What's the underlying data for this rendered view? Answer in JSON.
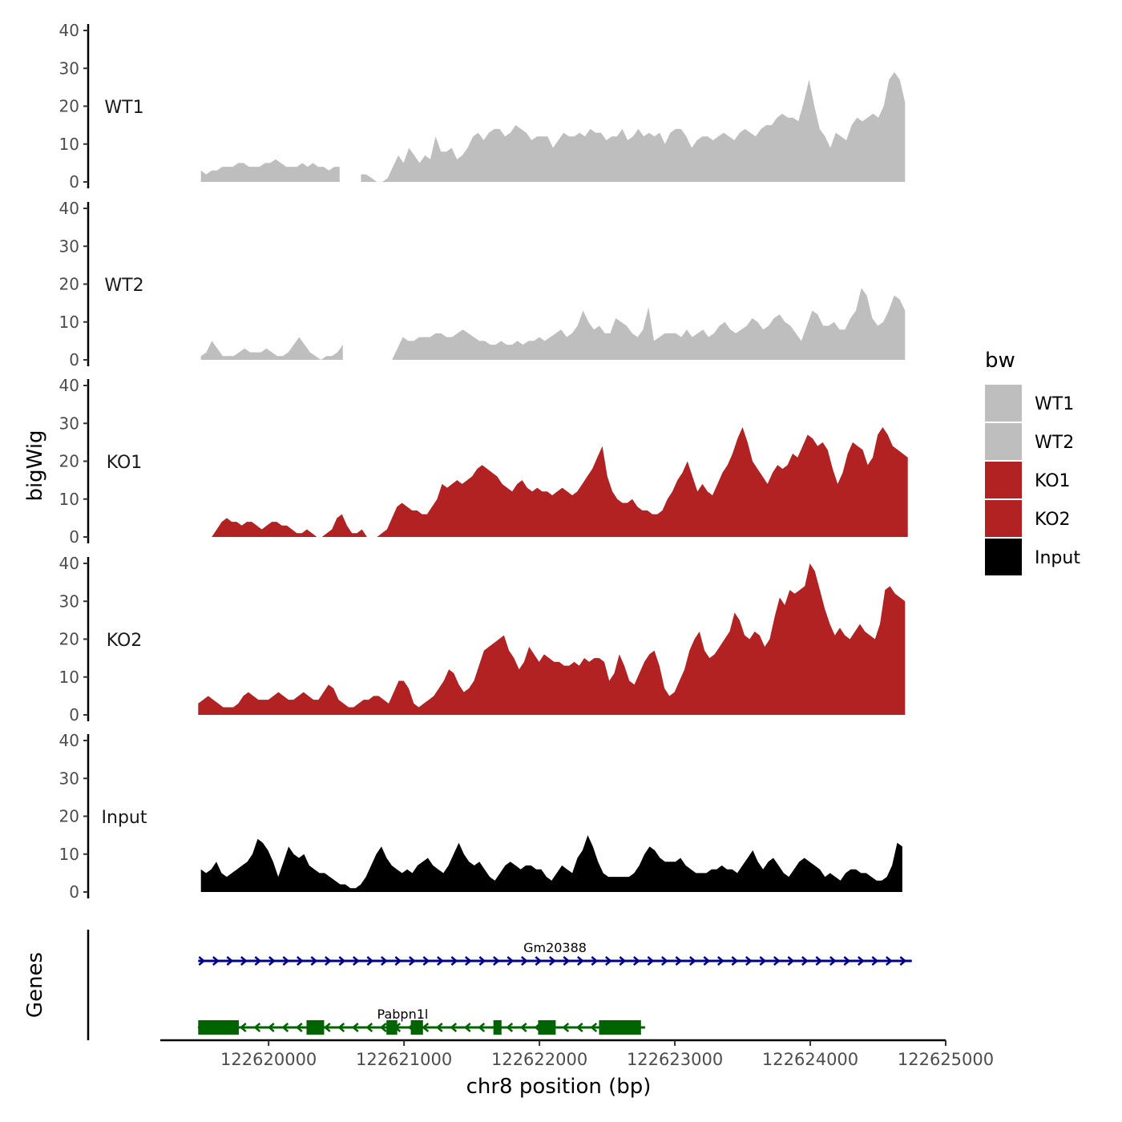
{
  "chart_data": {
    "type": "area",
    "y_axis_title": "bigWig",
    "genes_axis_title": "Genes",
    "x_axis_title": "chr8 position (bp)",
    "xlim": [
      122619200,
      122625000
    ],
    "x_ticks": [
      122620000,
      122621000,
      122622000,
      122623000,
      122624000,
      122625000
    ],
    "x_tick_labels": [
      "122620000",
      "122621000",
      "122622000",
      "122623000",
      "122624000",
      "122625000"
    ],
    "ylim": [
      0,
      40
    ],
    "y_ticks": [
      0,
      10,
      20,
      30,
      40
    ],
    "y_tick_labels": [
      "0",
      "10",
      "20",
      "30",
      "40"
    ],
    "legend": {
      "title": "bw",
      "position": "right",
      "entries": [
        {
          "label": "WT1",
          "color": "#bebebe"
        },
        {
          "label": "WT2",
          "color": "#bebebe"
        },
        {
          "label": "KO1",
          "color": "#b22222"
        },
        {
          "label": "KO2",
          "color": "#b22222"
        },
        {
          "label": "Input",
          "color": "#000000"
        }
      ]
    },
    "series": [
      {
        "name": "WT1",
        "label": "WT1",
        "color": "#bebebe",
        "x_start": 122619500,
        "x_end": 122624700,
        "values": [
          3,
          2,
          3,
          3,
          4,
          4,
          4,
          5,
          5,
          4,
          4,
          4,
          5,
          5,
          6,
          5,
          4,
          4,
          4,
          5,
          4,
          5,
          4,
          4,
          3,
          4,
          4,
          3,
          4,
          3,
          2,
          2,
          1,
          0,
          0,
          1,
          4,
          7,
          5,
          9,
          7,
          5,
          7,
          6,
          12,
          8,
          8,
          9,
          6,
          7,
          9,
          12,
          13,
          11,
          13,
          14,
          14,
          12,
          13,
          15,
          14,
          13,
          11,
          12,
          12,
          12,
          9,
          11,
          13,
          12,
          12,
          13,
          12,
          14,
          13,
          13,
          11,
          12,
          12,
          14,
          11,
          12,
          14,
          12,
          13,
          12,
          13,
          10,
          13,
          14,
          14,
          12,
          9,
          11,
          12,
          12,
          11,
          12,
          13,
          12,
          11,
          13,
          14,
          13,
          12,
          14,
          15,
          15,
          17,
          18,
          17,
          17,
          16,
          21,
          27,
          20,
          14,
          12,
          9,
          13,
          12,
          11,
          15,
          17,
          16,
          17,
          18,
          17,
          20,
          27,
          29,
          27,
          21
        ],
        "gaps": [
          [
            122620550,
            122620680
          ]
        ]
      },
      {
        "name": "WT2",
        "label": "WT2",
        "color": "#bebebe",
        "x_start": 122619500,
        "x_end": 122624700,
        "values": [
          1,
          2,
          5,
          3,
          1,
          1,
          1,
          2,
          3,
          2,
          2,
          2,
          3,
          2,
          1,
          1,
          2,
          4,
          6,
          4,
          2,
          1,
          0,
          1,
          1,
          2,
          4,
          5,
          3,
          1,
          0,
          0,
          0,
          0,
          0,
          0,
          3,
          6,
          5,
          5,
          6,
          6,
          6,
          7,
          7,
          6,
          6,
          7,
          8,
          7,
          6,
          5,
          5,
          4,
          4,
          5,
          4,
          4,
          5,
          4,
          5,
          5,
          6,
          5,
          6,
          7,
          8,
          6,
          7,
          9,
          13,
          10,
          8,
          9,
          7,
          7,
          11,
          10,
          9,
          7,
          6,
          8,
          14,
          5,
          6,
          7,
          7,
          7,
          6,
          8,
          6,
          7,
          8,
          6,
          7,
          9,
          10,
          8,
          7,
          8,
          9,
          11,
          10,
          8,
          9,
          11,
          12,
          10,
          9,
          7,
          5,
          9,
          13,
          12,
          9,
          9,
          10,
          8,
          8,
          11,
          13,
          19,
          17,
          11,
          9,
          10,
          13,
          17,
          16,
          13
        ],
        "gaps": [
          [
            122620550,
            122620680
          ]
        ]
      },
      {
        "name": "KO1",
        "label": "KO1",
        "color": "#b22222",
        "x_start": 122619580,
        "x_end": 122624720,
        "values": [
          0,
          2,
          4,
          5,
          4,
          4,
          3,
          4,
          4,
          3,
          2,
          3,
          4,
          4,
          3,
          3,
          2,
          1,
          1,
          2,
          1,
          0,
          0,
          1,
          2,
          5,
          6,
          3,
          1,
          1,
          2,
          0,
          0,
          0,
          1,
          2,
          5,
          8,
          9,
          8,
          7,
          7,
          6,
          6,
          8,
          10,
          14,
          13,
          14,
          15,
          14,
          15,
          16,
          18,
          19,
          18,
          17,
          16,
          14,
          13,
          12,
          14,
          15,
          13,
          12,
          13,
          12,
          12,
          11,
          12,
          13,
          12,
          11,
          12,
          14,
          16,
          18,
          21,
          24,
          16,
          12,
          10,
          9,
          9,
          10,
          8,
          7,
          7,
          6,
          6,
          7,
          10,
          12,
          15,
          17,
          20,
          16,
          12,
          14,
          12,
          11,
          14,
          17,
          19,
          22,
          26,
          29,
          25,
          20,
          18,
          16,
          14,
          17,
          19,
          18,
          19,
          22,
          21,
          24,
          27,
          26,
          24,
          25,
          23,
          18,
          14,
          17,
          22,
          25,
          24,
          23,
          19,
          21,
          27,
          29,
          27,
          24,
          23,
          22,
          21
        ]
      },
      {
        "name": "KO2",
        "label": "KO2",
        "color": "#b22222",
        "x_start": 122619480,
        "x_end": 122624700,
        "values": [
          3,
          4,
          5,
          4,
          3,
          2,
          2,
          2,
          3,
          5,
          6,
          5,
          4,
          4,
          4,
          5,
          6,
          5,
          4,
          4,
          5,
          6,
          5,
          4,
          4,
          6,
          8,
          7,
          4,
          3,
          2,
          2,
          3,
          4,
          4,
          5,
          5,
          4,
          3,
          6,
          9,
          9,
          7,
          3,
          2,
          3,
          4,
          5,
          7,
          9,
          12,
          11,
          8,
          6,
          7,
          9,
          13,
          17,
          18,
          19,
          20,
          21,
          17,
          15,
          12,
          14,
          18,
          16,
          14,
          16,
          15,
          14,
          14,
          13,
          13,
          14,
          13,
          15,
          14,
          15,
          15,
          14,
          9,
          11,
          16,
          13,
          9,
          8,
          11,
          14,
          16,
          17,
          13,
          7,
          5,
          6,
          9,
          12,
          17,
          20,
          22,
          17,
          15,
          16,
          18,
          20,
          22,
          27,
          25,
          21,
          20,
          22,
          21,
          18,
          20,
          26,
          31,
          29,
          33,
          32,
          33,
          34,
          40,
          38,
          33,
          28,
          24,
          21,
          23,
          21,
          20,
          22,
          24,
          22,
          21,
          20,
          24,
          33,
          34,
          32,
          31,
          30
        ]
      },
      {
        "name": "Input",
        "label": "Input",
        "color": "#000000",
        "x_start": 122619500,
        "x_end": 122624680,
        "values": [
          6,
          5,
          6,
          8,
          5,
          4,
          5,
          6,
          7,
          8,
          10,
          14,
          13,
          11,
          8,
          4,
          8,
          12,
          10,
          9,
          10,
          7,
          6,
          5,
          5,
          4,
          3,
          2,
          2,
          1,
          1,
          2,
          4,
          7,
          10,
          12,
          9,
          7,
          6,
          5,
          6,
          5,
          7,
          8,
          9,
          7,
          6,
          5,
          7,
          10,
          13,
          10,
          8,
          7,
          8,
          6,
          4,
          3,
          5,
          7,
          8,
          7,
          6,
          7,
          7,
          6,
          6,
          4,
          3,
          5,
          7,
          6,
          5,
          9,
          11,
          15,
          12,
          8,
          5,
          4,
          4,
          4,
          4,
          4,
          5,
          7,
          10,
          12,
          11,
          9,
          8,
          8,
          8,
          9,
          7,
          6,
          5,
          5,
          5,
          6,
          6,
          7,
          6,
          6,
          5,
          7,
          9,
          11,
          8,
          6,
          8,
          9,
          7,
          5,
          4,
          6,
          8,
          9,
          8,
          7,
          6,
          4,
          5,
          4,
          3,
          5,
          6,
          6,
          5,
          5,
          4,
          3,
          3,
          4,
          7,
          13,
          12
        ]
      }
    ],
    "genes": [
      {
        "name": "Gm20388",
        "color": "#00008b",
        "strand": "+",
        "start": 122619480,
        "end": 122624750,
        "exons": []
      },
      {
        "name": "Pabpn1l",
        "color": "#006400",
        "strand": "-",
        "start": 122619480,
        "end": 122622780,
        "exons": [
          [
            122619480,
            122619780
          ],
          [
            122620280,
            122620410
          ],
          [
            122620870,
            122620950
          ],
          [
            122621050,
            122621140
          ],
          [
            122621660,
            122621720
          ],
          [
            122621990,
            122622120
          ],
          [
            122622440,
            122622750
          ]
        ]
      }
    ]
  }
}
